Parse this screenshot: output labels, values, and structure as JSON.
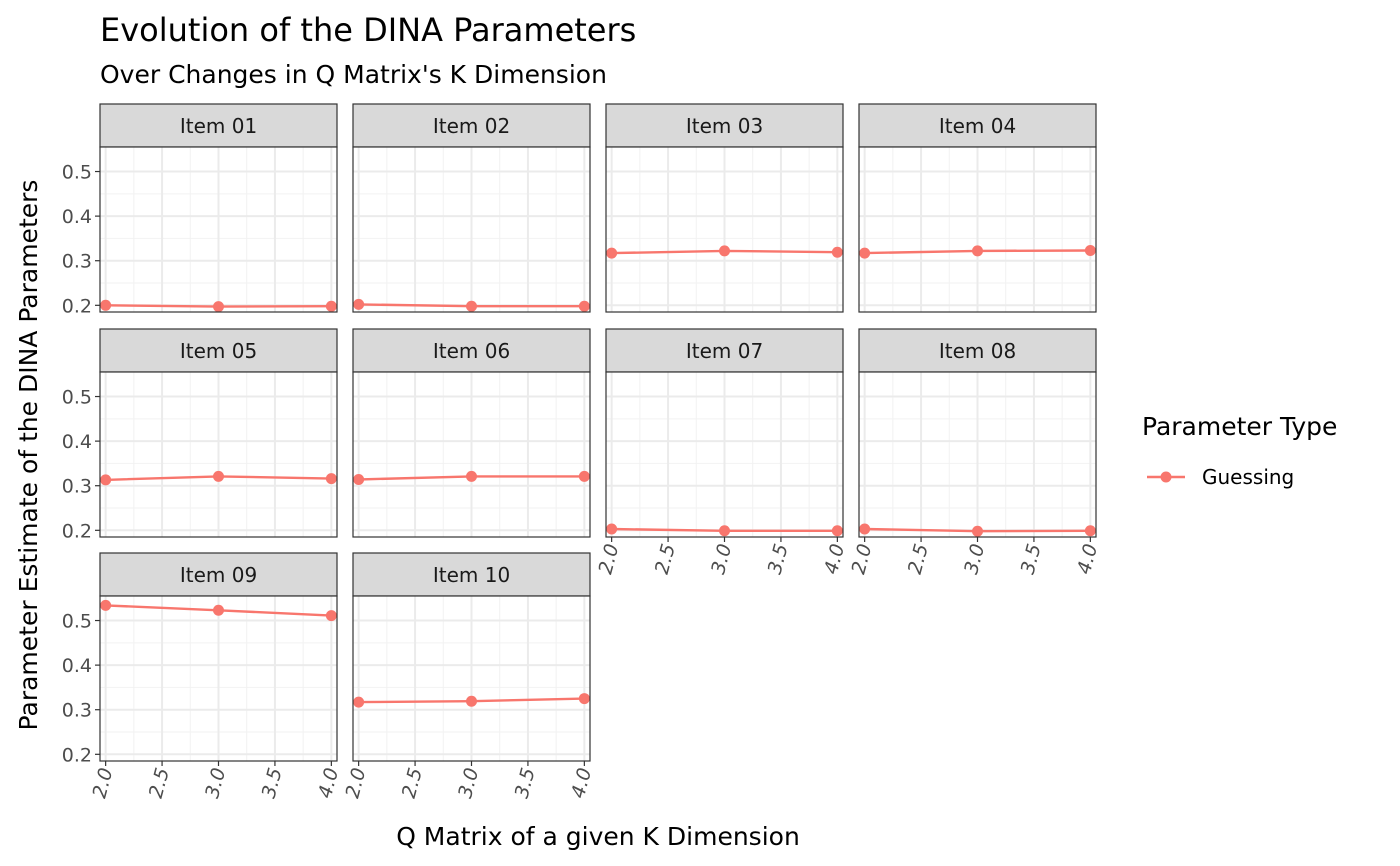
{
  "chart_data": {
    "type": "line",
    "title": "Evolution of the DINA Parameters",
    "subtitle": "Over Changes in Q Matrix's K Dimension",
    "xlabel": "Q Matrix of a given K Dimension",
    "ylabel": "Parameter Estimate of the DINA Parameters",
    "x": [
      2,
      3,
      4
    ],
    "xlim": [
      1.95,
      4.05
    ],
    "ylim": [
      0.185,
      0.555
    ],
    "x_ticks": [
      "2.0",
      "2.5",
      "3.0",
      "3.5",
      "4.0"
    ],
    "y_ticks": [
      "0.2",
      "0.3",
      "0.4",
      "0.5"
    ],
    "grid": true,
    "legend": {
      "title": "Parameter Type",
      "placement": "right",
      "entries": [
        "Guessing"
      ]
    },
    "series_color": "#F8766D",
    "panels": [
      {
        "label": "Item 01",
        "series": [
          {
            "name": "Guessing",
            "values": [
              0.2,
              0.197,
              0.198
            ]
          }
        ]
      },
      {
        "label": "Item 02",
        "series": [
          {
            "name": "Guessing",
            "values": [
              0.202,
              0.198,
              0.198
            ]
          }
        ]
      },
      {
        "label": "Item 03",
        "series": [
          {
            "name": "Guessing",
            "values": [
              0.317,
              0.322,
              0.319
            ]
          }
        ]
      },
      {
        "label": "Item 04",
        "series": [
          {
            "name": "Guessing",
            "values": [
              0.317,
              0.322,
              0.323
            ]
          }
        ]
      },
      {
        "label": "Item 05",
        "series": [
          {
            "name": "Guessing",
            "values": [
              0.313,
              0.321,
              0.316
            ]
          }
        ]
      },
      {
        "label": "Item 06",
        "series": [
          {
            "name": "Guessing",
            "values": [
              0.314,
              0.321,
              0.321
            ]
          }
        ]
      },
      {
        "label": "Item 07",
        "series": [
          {
            "name": "Guessing",
            "values": [
              0.203,
              0.199,
              0.199
            ]
          }
        ]
      },
      {
        "label": "Item 08",
        "series": [
          {
            "name": "Guessing",
            "values": [
              0.203,
              0.198,
              0.199
            ]
          }
        ]
      },
      {
        "label": "Item 09",
        "series": [
          {
            "name": "Guessing",
            "values": [
              0.534,
              0.523,
              0.511
            ]
          }
        ]
      },
      {
        "label": "Item 10",
        "series": [
          {
            "name": "Guessing",
            "values": [
              0.317,
              0.319,
              0.325
            ]
          }
        ]
      }
    ]
  }
}
